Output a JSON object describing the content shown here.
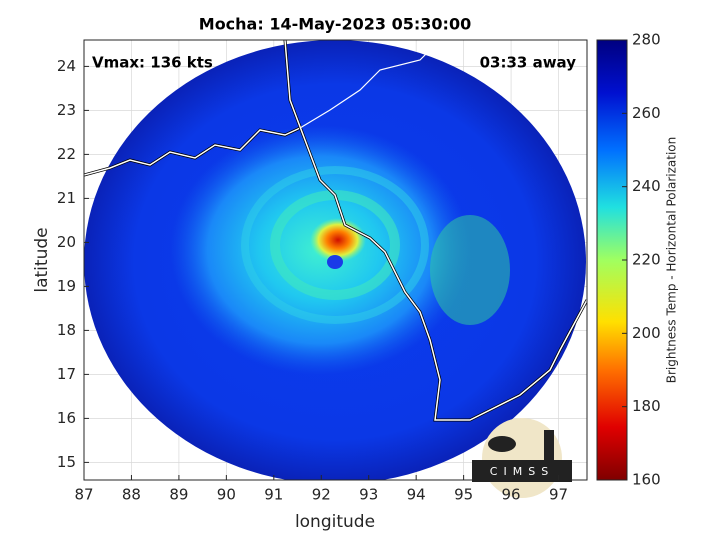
{
  "chart_data": {
    "type": "map",
    "title": "Mocha: 14-May-2023 05:30:00",
    "annotations": [
      "Vmax: 136 kts",
      "03:33 away"
    ],
    "xlabel": "longitude",
    "ylabel": "latitude",
    "xlim": [
      87,
      97.6
    ],
    "ylim": [
      14.6,
      24.6
    ],
    "xticks": [
      87,
      88,
      89,
      90,
      91,
      92,
      93,
      94,
      95,
      96,
      97
    ],
    "yticks": [
      15,
      16,
      17,
      18,
      19,
      20,
      21,
      22,
      23,
      24
    ],
    "grid": true,
    "colorbar": {
      "label": "Brightness Temp - Horizontal Polarization",
      "lim": [
        160,
        280
      ],
      "ticks": [
        160,
        180,
        200,
        220,
        240,
        260,
        280
      ]
    },
    "logo": "CIMSS"
  }
}
